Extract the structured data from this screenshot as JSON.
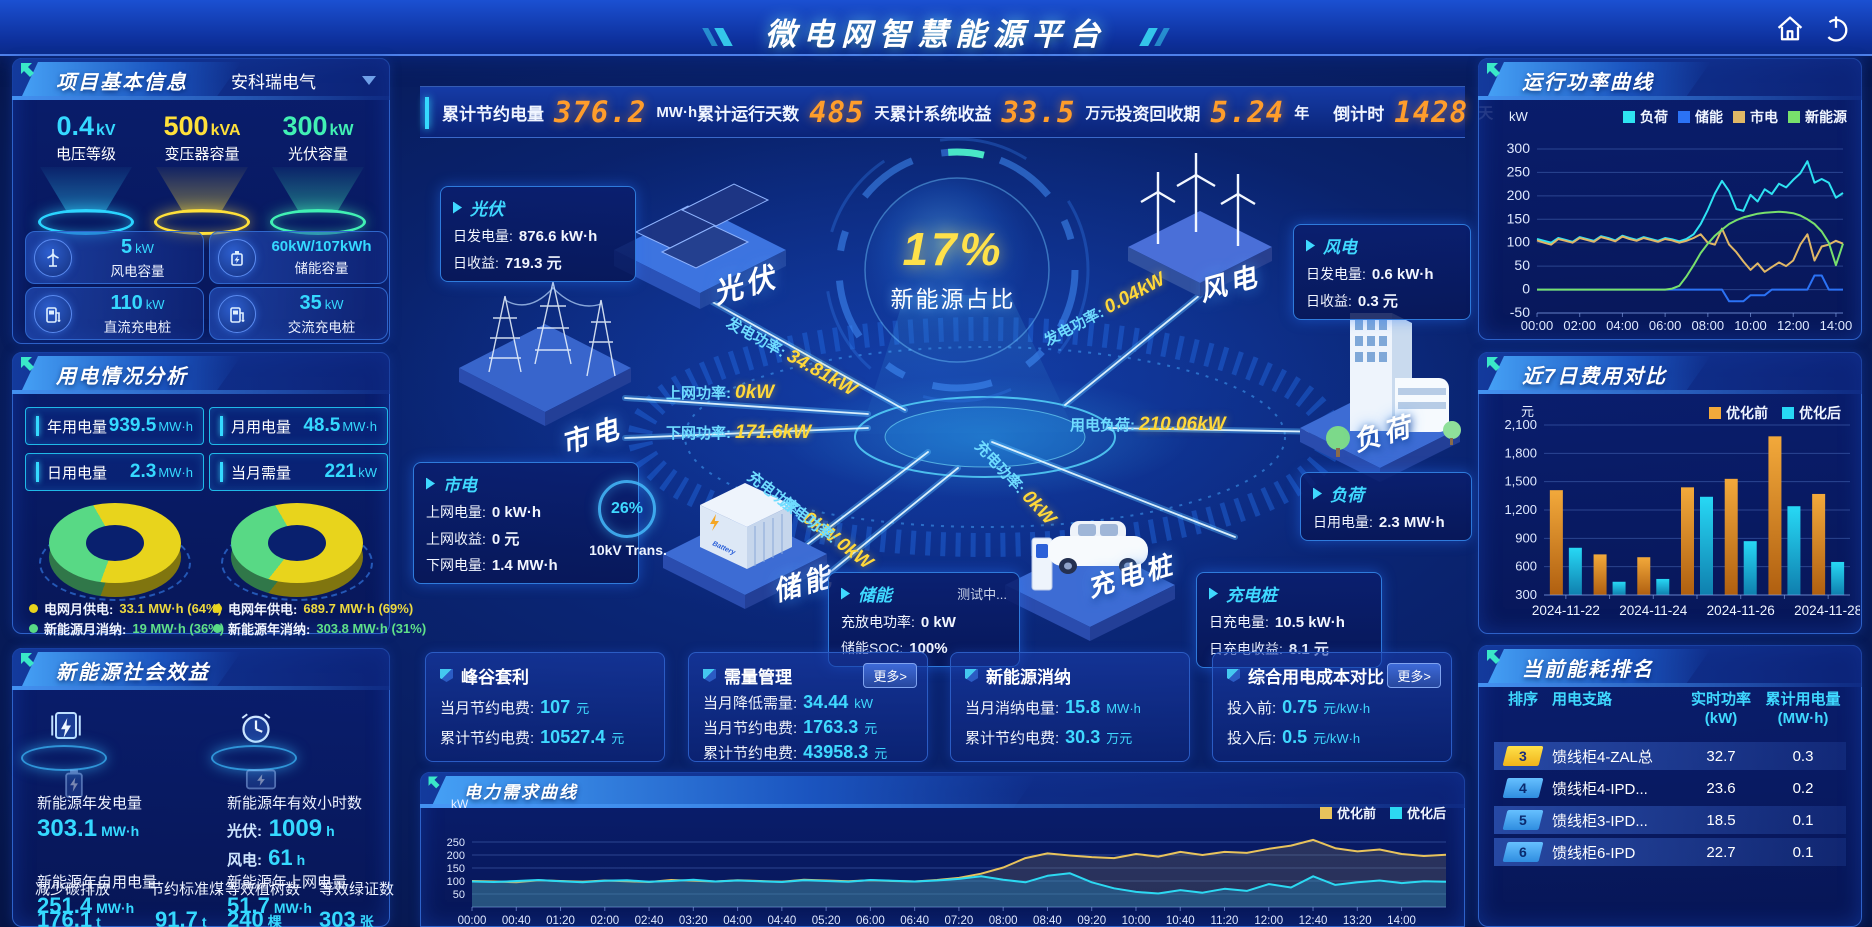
{
  "header": {
    "title": "微电网智慧能源平台"
  },
  "kpi_bar": {
    "items": [
      {
        "label": "累计节约电量",
        "value": "376.2",
        "unit": "MW·h"
      },
      {
        "label": "累计运行天数",
        "value": "485",
        "unit": "天"
      },
      {
        "label": "累计系统收益",
        "value": "33.5",
        "unit": "万元"
      },
      {
        "label": "投资回收期",
        "value": "5.24",
        "unit": "年"
      },
      {
        "label": "倒计时",
        "value": "1428",
        "unit": "天"
      }
    ]
  },
  "project_info": {
    "title": "项目基本信息",
    "company": "安科瑞电气",
    "cones": [
      {
        "value": "0.4",
        "unit": "kV",
        "label": "电压等级"
      },
      {
        "value": "500",
        "unit": "kVA",
        "label": "变压器容量"
      },
      {
        "value": "300",
        "unit": "kW",
        "label": "光伏容量"
      }
    ],
    "cards": [
      {
        "value": "5",
        "unit": "kW",
        "label": "风电容量"
      },
      {
        "value": "60kW/107kWh",
        "unit": "",
        "label": "储能容量"
      },
      {
        "value": "110",
        "unit": "kW",
        "label": "直流充电桩"
      },
      {
        "value": "35",
        "unit": "kW",
        "label": "交流充电桩"
      }
    ]
  },
  "usage_analysis": {
    "title": "用电情况分析",
    "stats": [
      {
        "label": "年用电量",
        "value": "939.5",
        "unit": "MW·h"
      },
      {
        "label": "月用电量",
        "value": "48.5",
        "unit": "MW·h"
      },
      {
        "label": "日用电量",
        "value": "2.3",
        "unit": "MW·h"
      },
      {
        "label": "当月需量",
        "value": "221",
        "unit": "kW"
      }
    ],
    "month_donut": {
      "grid_pct": 64,
      "legend": [
        {
          "label": "电网月供电:",
          "value": "33.1 MW·h (64%)"
        },
        {
          "label": "新能源月消纳:",
          "value": "19 MW·h (36%)"
        }
      ]
    },
    "year_donut": {
      "grid_pct": 69,
      "legend": [
        {
          "label": "电网年供电:",
          "value": "689.7 MW·h (69%)"
        },
        {
          "label": "新能源年消纳:",
          "value": "303.8 MW·h (31%)"
        }
      ]
    }
  },
  "social_benefits": {
    "title": "新能源社会效益",
    "gen_label": "新能源年发电量",
    "gen_value": "303.1",
    "gen_unit": "MW·h",
    "hours_label": "新能源年有效小时数",
    "pv_label": "光伏:",
    "pv_value": "1009",
    "pv_unit": "h",
    "wind_label": "风电:",
    "wind_value": "61",
    "wind_unit": "h",
    "self_label": "新能源年自用电量",
    "self_value": "251.4",
    "self_unit": "MW·h",
    "co2_label": "减少碳排放",
    "co2_value": "176.1",
    "co2_unit": "t",
    "coal_label": "节约标准煤",
    "coal_value": "91.7",
    "coal_unit": "t",
    "grid_label": "新能源年上网电量",
    "grid_value": "51.7",
    "grid_unit": "MW·h",
    "tree_label": "等效植树数",
    "tree_value": "240",
    "tree_unit": "棵",
    "cert_label": "等效绿证数",
    "cert_value": "303",
    "cert_unit": "张"
  },
  "diagram": {
    "center_value": "17%",
    "center_label": "新能源占比",
    "pv": {
      "title": "光伏",
      "node_label": "光伏",
      "rows": [
        {
          "label": "日发电量:",
          "value": "876.6 kW·h"
        },
        {
          "label": "日收益:",
          "value": "719.3 元"
        }
      ]
    },
    "wind": {
      "title": "风电",
      "node_label": "风电",
      "rows": [
        {
          "label": "日发电量:",
          "value": "0.6 kW·h"
        },
        {
          "label": "日收益:",
          "value": "0.3 元"
        }
      ]
    },
    "grid": {
      "title": "市电",
      "node_label": "市电",
      "rows": [
        {
          "label": "上网电量:",
          "value": "0 kW·h"
        },
        {
          "label": "上网收益:",
          "value": "0 元"
        },
        {
          "label": "下网电量:",
          "value": "1.4 MW·h"
        }
      ]
    },
    "storage": {
      "title": "储能",
      "node_label": "储能",
      "badge": "测试中...",
      "rows": [
        {
          "label": "充放电功率:",
          "value": "0 kW"
        },
        {
          "label": "储能SOC:",
          "value": "100%"
        }
      ]
    },
    "charger": {
      "title": "充电桩",
      "node_label": "充电桩",
      "rows": [
        {
          "label": "日充电量:",
          "value": "10.5 kW·h"
        },
        {
          "label": "日充电收益:",
          "value": "8.1 元"
        }
      ]
    },
    "load": {
      "title": "负荷",
      "node_label": "负荷",
      "rows": [
        {
          "label": "日用电量:",
          "value": "2.3 MW·h"
        }
      ]
    },
    "transformer_pct": "26%",
    "transformer_label": "10kV Trans.",
    "flows": [
      {
        "label": "发电功率:",
        "value": "34.81kW"
      },
      {
        "label": "发电功率:",
        "value": "0.04kW"
      },
      {
        "label": "上网功率:",
        "value": "0kW"
      },
      {
        "label": "下网功率:",
        "value": "171.6kW"
      },
      {
        "label": "用电负荷:",
        "value": "210.06kW"
      },
      {
        "label": "充电功率:",
        "value": "0kW"
      },
      {
        "label": "充电功率:",
        "value": "0kW"
      },
      {
        "label": "放电功率:",
        "value": "0kW"
      }
    ]
  },
  "cards": [
    {
      "title": "峰谷套利",
      "rows": [
        {
          "label": "当月节约电费:",
          "value": "107",
          "unit": "元"
        },
        {
          "label": "累计节约电费:",
          "value": "10527.4",
          "unit": "元"
        }
      ]
    },
    {
      "title": "需量管理",
      "more": "更多>",
      "rows": [
        {
          "label": "当月降低需量:",
          "value": "34.44",
          "unit": "kW"
        },
        {
          "label": "当月节约电费:",
          "value": "1763.3",
          "unit": "元"
        },
        {
          "label": "累计节约电费:",
          "value": "43958.3",
          "unit": "元"
        }
      ]
    },
    {
      "title": "新能源消纳",
      "rows": [
        {
          "label": "当月消纳电量:",
          "value": "15.8",
          "unit": "MW·h"
        },
        {
          "label": "累计节约电费:",
          "value": "30.3",
          "unit": "万元"
        }
      ]
    },
    {
      "title": "综合用电成本对比",
      "more": "更多>",
      "rows": [
        {
          "label": "投入前:",
          "value": "0.75",
          "unit": "元/kW·h"
        },
        {
          "label": "投入后:",
          "value": "0.5",
          "unit": "元/kW·h"
        }
      ]
    }
  ],
  "ranking": {
    "title": "当前能耗排名",
    "headers": [
      "排序",
      "用电支路",
      "实时功率\n(kW)",
      "累计用电量\n(MW·h)"
    ],
    "rows": [
      {
        "rank": "3",
        "branch": "馈线柜4-ZAL总",
        "power": "32.7",
        "energy": "0.3"
      },
      {
        "rank": "4",
        "branch": "馈线柜4-IPD...",
        "power": "23.6",
        "energy": "0.2"
      },
      {
        "rank": "5",
        "branch": "馈线柜3-IPD...",
        "power": "18.5",
        "energy": "0.1"
      },
      {
        "rank": "6",
        "branch": "馈线柜6-IPD",
        "power": "22.7",
        "energy": "0.1"
      }
    ]
  },
  "panel_titles": {
    "power_curve": "运行功率曲线",
    "cost_compare": "近7日费用对比",
    "demand_curve": "电力需求曲线"
  },
  "chart_data": [
    {
      "id": "chart-power",
      "type": "line",
      "title": "运行功率曲线",
      "y_unit": "kW",
      "ylim": [
        -50,
        300
      ],
      "yticks": [
        -50,
        0,
        50,
        100,
        150,
        200,
        250,
        300
      ],
      "xlabels": [
        "00:00",
        "02:00",
        "04:00",
        "06:00",
        "08:00",
        "10:00",
        "12:00",
        "14:00"
      ],
      "xlabel_step_hours": 2,
      "x_total_hours": 14.33,
      "plot": {
        "l": 52,
        "r": 358,
        "t": 32,
        "b": 196
      },
      "legend_position": "top",
      "series": [
        {
          "name": "负荷",
          "color": "#2ee3f2",
          "values": [
            108,
            104,
            100,
            110,
            106,
            102,
            112,
            108,
            104,
            114,
            110,
            105,
            115,
            110,
            106,
            112,
            108,
            104,
            110,
            107,
            103,
            108,
            118,
            140,
            170,
            205,
            232,
            210,
            172,
            168,
            202,
            188,
            214,
            204,
            226,
            218,
            234,
            248,
            274,
            228,
            236,
            228,
            196,
            206
          ]
        },
        {
          "name": "储能",
          "color": "#2b72f5",
          "values": [
            0,
            0,
            0,
            0,
            0,
            0,
            0,
            0,
            0,
            0,
            0,
            0,
            0,
            0,
            0,
            0,
            0,
            0,
            0,
            0,
            0,
            0,
            0,
            0,
            0,
            0,
            0,
            -25,
            -25,
            -25,
            -12,
            -12,
            -12,
            0,
            0,
            0,
            0,
            0,
            0,
            30,
            30,
            0,
            0,
            0
          ]
        },
        {
          "name": "市电",
          "color": "#e0b766",
          "values": [
            105,
            100,
            96,
            108,
            104,
            100,
            110,
            106,
            102,
            112,
            108,
            103,
            113,
            108,
            104,
            110,
            106,
            102,
            108,
            105,
            100,
            104,
            110,
            118,
            100,
            96,
            130,
            96,
            80,
            60,
            42,
            56,
            38,
            48,
            58,
            50,
            62,
            96,
            118,
            62,
            92,
            96,
            104,
            98
          ]
        },
        {
          "name": "新能源",
          "color": "#78e06c",
          "values": [
            0,
            0,
            0,
            0,
            0,
            0,
            0,
            0,
            0,
            0,
            0,
            0,
            0,
            0,
            0,
            0,
            0,
            0,
            0,
            2,
            8,
            28,
            52,
            78,
            98,
            115,
            128,
            140,
            148,
            154,
            158,
            162,
            164,
            165,
            166,
            165,
            163,
            158,
            150,
            140,
            124,
            100,
            52,
            98
          ]
        }
      ]
    },
    {
      "id": "chart-cost",
      "type": "bar",
      "title": "近7日费用对比",
      "y_unit": "元",
      "ylim": [
        300,
        2100
      ],
      "yticks": [
        300,
        600,
        900,
        1200,
        1500,
        1800,
        2100
      ],
      "ytick_labels": [
        "300",
        "600",
        "900",
        "1,200",
        "1,500",
        "1,800",
        "2,100"
      ],
      "categories": [
        "2024-11-22",
        "2024-11-23",
        "2024-11-24",
        "2024-11-25",
        "2024-11-26",
        "2024-11-27",
        "2024-11-28"
      ],
      "xtick_shown": [
        "2024-11-22",
        "",
        "2024-11-24",
        "",
        "2024-11-26",
        "",
        "2024-11-28"
      ],
      "plot": {
        "l": 62,
        "r": 368,
        "t": 28,
        "b": 198
      },
      "legend_position": "top-right",
      "series": [
        {
          "name": "优化前",
          "color_top": "#f2a93b",
          "color_bottom": "#b05f10",
          "values": [
            1410,
            730,
            700,
            1440,
            1530,
            1980,
            1370
          ]
        },
        {
          "name": "优化后",
          "color_top": "#27d8f5",
          "color_bottom": "#0f7fae",
          "values": [
            800,
            440,
            470,
            1340,
            870,
            1240,
            650
          ]
        }
      ]
    },
    {
      "id": "chart-demand",
      "type": "line",
      "title": "电力需求曲线",
      "y_unit": "kW",
      "ylim": [
        0,
        300
      ],
      "yticks": [
        50,
        100,
        150,
        200,
        250
      ],
      "xlabels": [
        "00:00",
        "00:40",
        "01:20",
        "02:00",
        "02:40",
        "03:20",
        "04:00",
        "04:40",
        "05:20",
        "06:00",
        "06:40",
        "07:20",
        "08:00",
        "08:40",
        "09:20",
        "10:00",
        "10:40",
        "11:20",
        "12:00",
        "12:40",
        "13:20",
        "14:00"
      ],
      "xlabel_step_hours": 0.6667,
      "x_total_hours": 14.67,
      "plot": {
        "l": 46,
        "r": 1020,
        "t": 14,
        "b": 92
      },
      "legend_position": "top-right",
      "series": [
        {
          "name": "优化前",
          "color": "#e8c35c",
          "fill": "rgba(160,140,80,0.22)",
          "values": [
            100,
            98,
            95,
            103,
            100,
            97,
            102,
            99,
            96,
            104,
            101,
            98,
            103,
            100,
            97,
            105,
            102,
            99,
            103,
            100,
            98,
            104,
            112,
            128,
            152,
            188,
            206,
            198,
            192,
            188,
            204,
            194,
            212,
            200,
            212,
            208,
            224,
            236,
            258,
            226,
            214,
            221,
            204,
            196,
            201
          ]
        },
        {
          "name": "优化后",
          "color": "#2cd9f2",
          "fill": "rgba(35,160,215,0.30)",
          "values": [
            98,
            96,
            100,
            104,
            99,
            95,
            101,
            103,
            97,
            100,
            105,
            98,
            102,
            99,
            96,
            103,
            100,
            97,
            104,
            101,
            98,
            102,
            108,
            118,
            105,
            95,
            120,
            130,
            95,
            72,
            58,
            52,
            65,
            55,
            70,
            62,
            88,
            75,
            118,
            85,
            95,
            102,
            92,
            99,
            97
          ]
        }
      ]
    },
    {
      "id": "donut-month",
      "type": "pie",
      "title": "月供电结构",
      "labels": [
        "电网月供电",
        "新能源月消纳"
      ],
      "values": [
        64,
        36
      ],
      "value_texts": [
        "33.1 MW·h",
        "19 MW·h"
      ]
    },
    {
      "id": "donut-year",
      "type": "pie",
      "title": "年供电结构",
      "labels": [
        "电网年供电",
        "新能源年消纳"
      ],
      "values": [
        69,
        31
      ],
      "value_texts": [
        "689.7 MW·h",
        "303.8 MW·h"
      ]
    }
  ]
}
